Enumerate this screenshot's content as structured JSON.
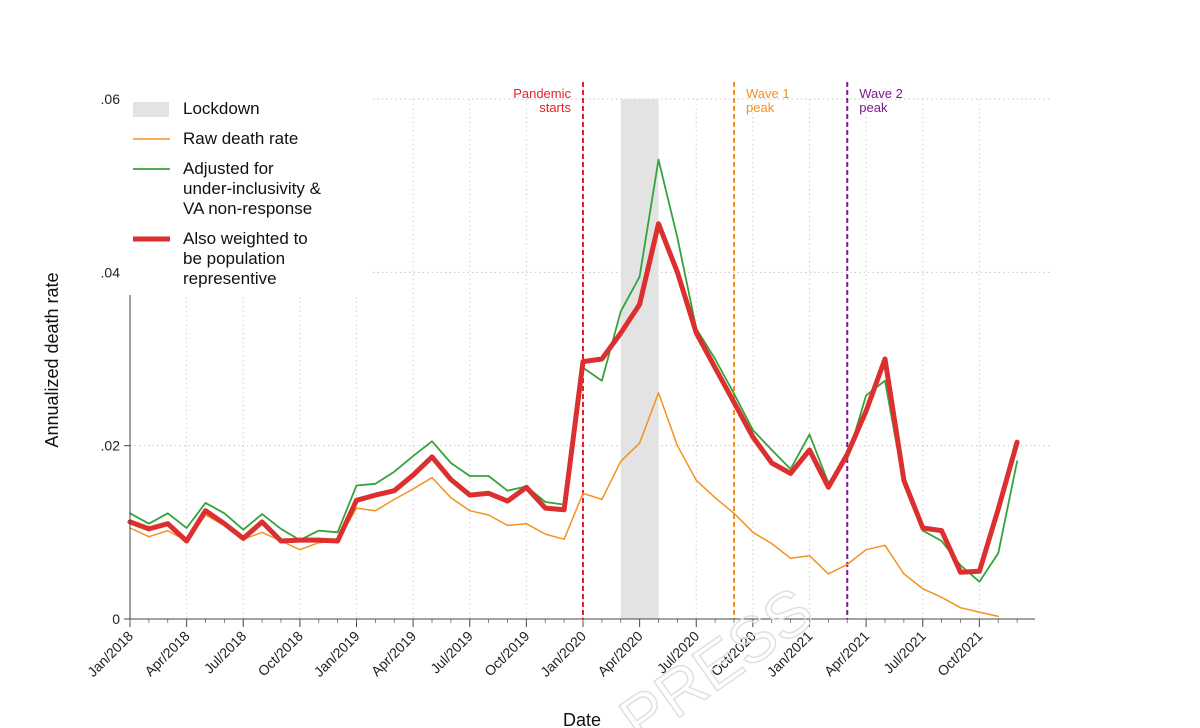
{
  "chart_data": {
    "type": "line",
    "title": "",
    "xlabel": "Date",
    "ylabel": "Annualized death rate",
    "x_range": [
      "2018-01",
      "2021-12"
    ],
    "ylim": [
      0,
      0.06
    ],
    "yticks": [
      0,
      0.02,
      0.04,
      0.06
    ],
    "ytick_labels": [
      "0",
      ".02",
      ".04",
      ".06"
    ],
    "xticks": [
      "2018-01",
      "2018-04",
      "2018-07",
      "2018-10",
      "2019-01",
      "2019-04",
      "2019-07",
      "2019-10",
      "2020-01",
      "2020-04",
      "2020-07",
      "2020-10",
      "2021-01",
      "2021-04",
      "2021-07",
      "2021-10"
    ],
    "xtick_labels": [
      "Jan/2018",
      "Apr/2018",
      "Jul/2018",
      "Oct/2018",
      "Jan/2019",
      "Apr/2019",
      "Jul/2019",
      "Oct/2019",
      "Jan/2020",
      "Apr/2020",
      "Jul/2020",
      "Oct/2020",
      "Jan/2021",
      "Apr/2021",
      "Jul/2021",
      "Oct/2021"
    ],
    "grid": true,
    "legend_position": "top-left",
    "lockdown": {
      "label": "Lockdown",
      "start": "2020-03",
      "end": "2020-05",
      "color": "#e3e3e3"
    },
    "vlines": [
      {
        "date": "2020-01",
        "label_lines": [
          "Pandemic",
          "starts"
        ],
        "color": "#e8202a",
        "label_align": "right"
      },
      {
        "date": "2020-09",
        "label_lines": [
          "Wave 1",
          "peak"
        ],
        "color": "#f39220",
        "label_align": "left"
      },
      {
        "date": "2021-03",
        "label_lines": [
          "Wave 2",
          "peak"
        ],
        "color": "#7b1a8c",
        "label_align": "left"
      }
    ],
    "series": [
      {
        "name": "Raw death rate",
        "color": "#f39220",
        "width": 1.5,
        "points": [
          [
            "2018-01",
            0.0105
          ],
          [
            "2018-02",
            0.0095
          ],
          [
            "2018-03",
            0.0102
          ],
          [
            "2018-04",
            0.009
          ],
          [
            "2018-05",
            0.012
          ],
          [
            "2018-06",
            0.0108
          ],
          [
            "2018-07",
            0.0092
          ],
          [
            "2018-08",
            0.01
          ],
          [
            "2018-09",
            0.009
          ],
          [
            "2018-10",
            0.008
          ],
          [
            "2018-11",
            0.0088
          ],
          [
            "2018-12",
            0.009
          ],
          [
            "2019-01",
            0.0128
          ],
          [
            "2019-02",
            0.0125
          ],
          [
            "2019-03",
            0.0138
          ],
          [
            "2019-04",
            0.015
          ],
          [
            "2019-05",
            0.0163
          ],
          [
            "2019-06",
            0.014
          ],
          [
            "2019-07",
            0.0125
          ],
          [
            "2019-08",
            0.012
          ],
          [
            "2019-09",
            0.0108
          ],
          [
            "2019-10",
            0.011
          ],
          [
            "2019-11",
            0.0098
          ],
          [
            "2019-12",
            0.0092
          ],
          [
            "2020-01",
            0.0145
          ],
          [
            "2020-02",
            0.0138
          ],
          [
            "2020-03",
            0.0182
          ],
          [
            "2020-04",
            0.0203
          ],
          [
            "2020-05",
            0.0261
          ],
          [
            "2020-06",
            0.02
          ],
          [
            "2020-07",
            0.016
          ],
          [
            "2020-08",
            0.014
          ],
          [
            "2020-09",
            0.0122
          ],
          [
            "2020-10",
            0.01
          ],
          [
            "2020-11",
            0.0087
          ],
          [
            "2020-12",
            0.007
          ],
          [
            "2021-01",
            0.0073
          ],
          [
            "2021-02",
            0.0052
          ],
          [
            "2021-03",
            0.0063
          ],
          [
            "2021-04",
            0.008
          ],
          [
            "2021-05",
            0.0085
          ],
          [
            "2021-06",
            0.0052
          ],
          [
            "2021-07",
            0.0035
          ],
          [
            "2021-08",
            0.0025
          ],
          [
            "2021-09",
            0.0013
          ],
          [
            "2021-10",
            0.0008
          ],
          [
            "2021-11",
            0.0003
          ]
        ]
      },
      {
        "name": "Adjusted for under-inclusivity & VA non-response",
        "legend_lines": [
          "Adjusted for",
          "under-inclusivity &",
          "VA non-response"
        ],
        "color": "#34a33a",
        "width": 1.8,
        "points": [
          [
            "2018-01",
            0.0122
          ],
          [
            "2018-02",
            0.011
          ],
          [
            "2018-03",
            0.0122
          ],
          [
            "2018-04",
            0.0105
          ],
          [
            "2018-05",
            0.0134
          ],
          [
            "2018-06",
            0.0122
          ],
          [
            "2018-07",
            0.0103
          ],
          [
            "2018-08",
            0.0121
          ],
          [
            "2018-09",
            0.0104
          ],
          [
            "2018-10",
            0.0091
          ],
          [
            "2018-11",
            0.0102
          ],
          [
            "2018-12",
            0.01
          ],
          [
            "2019-01",
            0.0154
          ],
          [
            "2019-02",
            0.0156
          ],
          [
            "2019-03",
            0.017
          ],
          [
            "2019-04",
            0.0188
          ],
          [
            "2019-05",
            0.0205
          ],
          [
            "2019-06",
            0.018
          ],
          [
            "2019-07",
            0.0165
          ],
          [
            "2019-08",
            0.0165
          ],
          [
            "2019-09",
            0.0148
          ],
          [
            "2019-10",
            0.0153
          ],
          [
            "2019-11",
            0.0135
          ],
          [
            "2019-12",
            0.0132
          ],
          [
            "2020-01",
            0.029
          ],
          [
            "2020-02",
            0.0275
          ],
          [
            "2020-03",
            0.0355
          ],
          [
            "2020-04",
            0.0395
          ],
          [
            "2020-05",
            0.053
          ],
          [
            "2020-06",
            0.044
          ],
          [
            "2020-07",
            0.0335
          ],
          [
            "2020-08",
            0.03
          ],
          [
            "2020-09",
            0.026
          ],
          [
            "2020-10",
            0.0218
          ],
          [
            "2020-11",
            0.0195
          ],
          [
            "2020-12",
            0.0173
          ],
          [
            "2021-01",
            0.0213
          ],
          [
            "2021-02",
            0.0157
          ],
          [
            "2021-03",
            0.0185
          ],
          [
            "2021-04",
            0.0258
          ],
          [
            "2021-05",
            0.0275
          ],
          [
            "2021-06",
            0.0155
          ],
          [
            "2021-07",
            0.0102
          ],
          [
            "2021-08",
            0.009
          ],
          [
            "2021-09",
            0.0062
          ],
          [
            "2021-10",
            0.0043
          ],
          [
            "2021-11",
            0.0076
          ],
          [
            "2021-12",
            0.0182
          ]
        ]
      },
      {
        "name": "Also weighted to be population representive",
        "legend_lines": [
          "Also weighted to",
          "be population",
          "representive"
        ],
        "color": "#dc2f2f",
        "width": 5,
        "points": [
          [
            "2018-01",
            0.0112
          ],
          [
            "2018-02",
            0.0104
          ],
          [
            "2018-03",
            0.011
          ],
          [
            "2018-04",
            0.009
          ],
          [
            "2018-05",
            0.0125
          ],
          [
            "2018-06",
            0.011
          ],
          [
            "2018-07",
            0.0093
          ],
          [
            "2018-08",
            0.0112
          ],
          [
            "2018-09",
            0.009
          ],
          [
            "2018-10",
            0.0091
          ],
          [
            "2018-11",
            0.0091
          ],
          [
            "2018-12",
            0.009
          ],
          [
            "2019-01",
            0.0137
          ],
          [
            "2019-02",
            0.0143
          ],
          [
            "2019-03",
            0.0148
          ],
          [
            "2019-04",
            0.0166
          ],
          [
            "2019-05",
            0.0187
          ],
          [
            "2019-06",
            0.0161
          ],
          [
            "2019-07",
            0.0143
          ],
          [
            "2019-08",
            0.0145
          ],
          [
            "2019-09",
            0.0136
          ],
          [
            "2019-10",
            0.0152
          ],
          [
            "2019-11",
            0.0128
          ],
          [
            "2019-12",
            0.0126
          ],
          [
            "2020-01",
            0.0297
          ],
          [
            "2020-02",
            0.03
          ],
          [
            "2020-03",
            0.033
          ],
          [
            "2020-04",
            0.0363
          ],
          [
            "2020-05",
            0.0456
          ],
          [
            "2020-06",
            0.04
          ],
          [
            "2020-07",
            0.033
          ],
          [
            "2020-08",
            0.029
          ],
          [
            "2020-09",
            0.025
          ],
          [
            "2020-10",
            0.021
          ],
          [
            "2020-11",
            0.018
          ],
          [
            "2020-12",
            0.0168
          ],
          [
            "2021-01",
            0.0195
          ],
          [
            "2021-02",
            0.0152
          ],
          [
            "2021-03",
            0.019
          ],
          [
            "2021-04",
            0.024
          ],
          [
            "2021-05",
            0.03
          ],
          [
            "2021-06",
            0.016
          ],
          [
            "2021-07",
            0.0105
          ],
          [
            "2021-08",
            0.0102
          ],
          [
            "2021-09",
            0.0054
          ],
          [
            "2021-10",
            0.0055
          ],
          [
            "2021-11",
            0.0127
          ],
          [
            "2021-12",
            0.0204
          ]
        ]
      }
    ],
    "legend": [
      {
        "kind": "box",
        "lines": [
          "Lockdown"
        ],
        "color": "#e3e3e3"
      },
      {
        "kind": "line",
        "lines": [
          "Raw death rate"
        ],
        "color": "#f39220",
        "width": 1.5
      },
      {
        "kind": "line",
        "lines": [
          "Adjusted for",
          "under-inclusivity &",
          "VA non-response"
        ],
        "color": "#34a33a",
        "width": 1.8
      },
      {
        "kind": "line",
        "lines": [
          "Also weighted to",
          "be population",
          "representive"
        ],
        "color": "#dc2f2f",
        "width": 5
      }
    ]
  },
  "watermark_text": "PRESS"
}
